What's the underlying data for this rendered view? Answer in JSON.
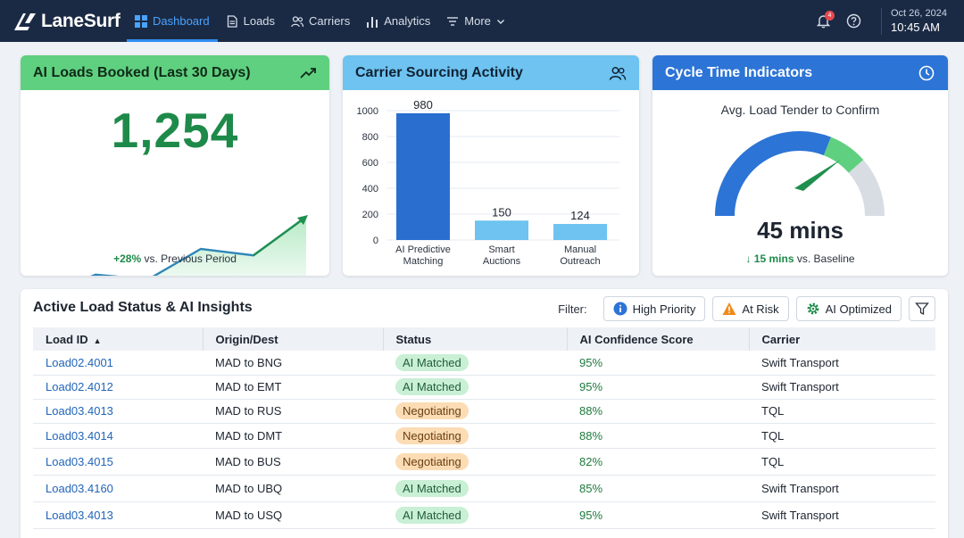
{
  "brand": {
    "name": "LaneSurf"
  },
  "nav": [
    {
      "label": "Dashboard",
      "icon": "dashboard-icon",
      "active": true
    },
    {
      "label": "Loads",
      "icon": "document-icon"
    },
    {
      "label": "Carriers",
      "icon": "users-icon"
    },
    {
      "label": "Analytics",
      "icon": "bar-chart-icon"
    },
    {
      "label": "More",
      "icon": "menu-icon"
    }
  ],
  "header": {
    "notification_count": "4",
    "date": "Oct 26, 2024",
    "time": "10:45 AM"
  },
  "colors": {
    "nav_bg": "#1b2a44",
    "accent": "#2f8cf0",
    "green": "#1e8a4a",
    "card_green": "#5fd07f",
    "card_lightblue": "#6ec3f0",
    "card_blue": "#2c74d6",
    "bar_blue": "#2a6fd0",
    "bar_light": "#6ec3f0"
  },
  "card_loads": {
    "title": "AI Loads Booked (Last 30 Days)",
    "value": "1,254",
    "change": "+28%",
    "change_suffix": "vs. Previous Period",
    "icon": "trending-up-icon"
  },
  "card_carriers": {
    "title": "Carrier Sourcing Activity",
    "icon": "users-icon"
  },
  "card_cycle": {
    "title": "Cycle Time Indicators",
    "icon": "clock-icon",
    "gauge_label": "Avg. Load Tender to Confirm",
    "value": "45 mins",
    "change": "15 mins",
    "change_suffix": "vs. Baseline"
  },
  "chart_data": [
    {
      "type": "line",
      "x": [
        1,
        2,
        3,
        4,
        5,
        6
      ],
      "y": [
        0,
        28,
        22,
        60,
        52,
        100
      ],
      "title": "",
      "xlabel": "",
      "ylabel": "",
      "grid": false
    },
    {
      "type": "bar",
      "categories": [
        "AI Predictive Matching",
        "Smart Auctions",
        "Manual Outreach"
      ],
      "category_lines": [
        [
          "AI Predictive",
          "Matching"
        ],
        [
          "Smart",
          "Auctions"
        ],
        [
          "Manual",
          "Outreach"
        ]
      ],
      "values": [
        980,
        150,
        124
      ],
      "value_labels": [
        "980",
        "150",
        "124"
      ],
      "ylim": [
        0,
        1000
      ],
      "yticks": [
        0,
        200,
        400,
        600,
        800,
        1000
      ],
      "grid": true,
      "title": "",
      "xlabel": "",
      "ylabel": ""
    },
    {
      "type": "gauge",
      "value_fraction": 0.7
    }
  ],
  "table": {
    "title": "Active Load Status & AI Insights",
    "filter_label": "Filter:",
    "filters": [
      {
        "label": "High Priority",
        "icon": "info-icon"
      },
      {
        "label": "At Risk",
        "icon": "warning-icon"
      },
      {
        "label": "AI Optimized",
        "icon": "gear-icon"
      }
    ],
    "columns": [
      "Load ID",
      "Origin/Dest",
      "Status",
      "AI Confidence Score",
      "Carrier"
    ],
    "rows": [
      {
        "id": "Load02.4001",
        "route": "MAD to BNG",
        "status": "AI Matched",
        "kind": "matched",
        "score": "95%",
        "carrier": "Swift Transport"
      },
      {
        "id": "Load02.4012",
        "route": "MAD to EMT",
        "status": "AI Matched",
        "kind": "matched",
        "score": "95%",
        "carrier": "Swift Transport"
      },
      {
        "id": "Load03.4013",
        "route": "MAD to RUS",
        "status": "Negotiating",
        "kind": "neg",
        "score": "88%",
        "carrier": "TQL"
      },
      {
        "id": "Load03.4014",
        "route": "MAD to DMT",
        "status": "Negotiating",
        "kind": "neg",
        "score": "88%",
        "carrier": "TQL"
      },
      {
        "id": "Load03.4015",
        "route": "MAD to BUS",
        "status": "Negotiating",
        "kind": "neg",
        "score": "82%",
        "carrier": "TQL"
      },
      {
        "id": "Load03.4160",
        "route": "MAD to UBQ",
        "status": "AI Matched",
        "kind": "matched",
        "score": "85%",
        "carrier": "Swift Transport"
      },
      {
        "id": "Load03.4013",
        "route": "MAD to USQ",
        "status": "AI Matched",
        "kind": "matched",
        "score": "95%",
        "carrier": "Swift Transport"
      }
    ]
  }
}
